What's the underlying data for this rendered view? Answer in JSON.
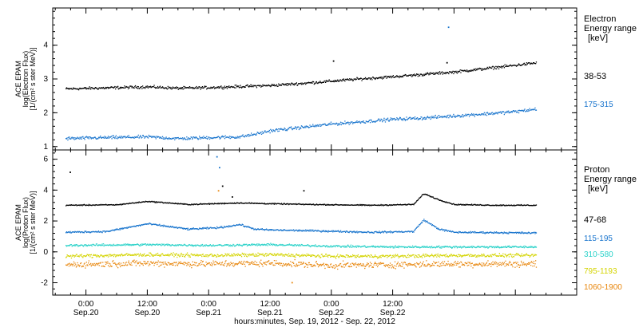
{
  "chart_data": [
    {
      "type": "scatter",
      "panel": "electron",
      "ylabel": [
        "ACE EPAM",
        "log(Electron Flux)",
        "[1/(cm² s ster MeV)]"
      ],
      "ylim": [
        0.9,
        5.1
      ],
      "yticks": [
        1,
        2,
        3,
        4
      ],
      "legend_title": [
        "Electron",
        "Energy range",
        "[keV]"
      ],
      "series": [
        {
          "name": "38-53",
          "color": "#000000",
          "x": [
            -4,
            4,
            12,
            18,
            24,
            30,
            36,
            42,
            48,
            54,
            60,
            66,
            72,
            78,
            84,
            88
          ],
          "y": [
            2.72,
            2.75,
            2.78,
            2.74,
            2.76,
            2.79,
            2.82,
            2.88,
            2.95,
            3.02,
            3.08,
            3.15,
            3.22,
            3.32,
            3.42,
            3.49
          ],
          "noise": 0.06
        },
        {
          "name": "175-315",
          "color": "#1874cd",
          "x": [
            -4,
            4,
            12,
            18,
            24,
            30,
            33,
            36,
            42,
            48,
            54,
            60,
            66,
            72,
            78,
            84,
            88
          ],
          "y": [
            1.25,
            1.28,
            1.3,
            1.25,
            1.28,
            1.3,
            1.38,
            1.48,
            1.58,
            1.68,
            1.75,
            1.82,
            1.86,
            1.92,
            1.98,
            2.05,
            2.12
          ],
          "noise": 0.07
        }
      ],
      "outliers": [
        {
          "x": 70.8,
          "y": 4.55,
          "color": "#1874cd"
        },
        {
          "x": 48.3,
          "y": 3.55,
          "color": "#000000"
        },
        {
          "x": 70.5,
          "y": 3.5,
          "color": "#000000"
        }
      ]
    },
    {
      "type": "scatter",
      "panel": "proton",
      "ylabel": [
        "ACE EPAM",
        "log(Proton Flux)",
        "[1/(cm² s ster MeV)]"
      ],
      "ylim": [
        -2.8,
        6.6
      ],
      "yticks": [
        -2,
        0,
        2,
        4,
        6
      ],
      "legend_title": [
        "Proton",
        "Energy range",
        "[keV]"
      ],
      "series": [
        {
          "name": "47-68",
          "color": "#000000",
          "x": [
            -4,
            6,
            12,
            20,
            30,
            36,
            44,
            56,
            64,
            66,
            69,
            72,
            80,
            88
          ],
          "y": [
            3.05,
            3.08,
            3.3,
            3.1,
            3.2,
            3.15,
            3.1,
            3.05,
            3.1,
            3.8,
            3.4,
            3.1,
            3.05,
            3.05
          ],
          "noise": 0.05
        },
        {
          "name": "115-195",
          "color": "#1874cd",
          "x": [
            -4,
            4,
            12,
            20,
            26,
            30,
            33,
            36,
            44,
            56,
            64,
            66,
            69,
            72,
            80,
            88
          ],
          "y": [
            1.3,
            1.35,
            1.85,
            1.5,
            1.6,
            1.8,
            1.5,
            1.45,
            1.4,
            1.3,
            1.35,
            2.1,
            1.5,
            1.3,
            1.28,
            1.25
          ],
          "noise": 0.08
        },
        {
          "name": "310-580",
          "color": "#2ad2c9",
          "x": [
            -4,
            12,
            24,
            36,
            48,
            60,
            72,
            88
          ],
          "y": [
            0.45,
            0.5,
            0.45,
            0.5,
            0.4,
            0.35,
            0.35,
            0.35
          ],
          "noise": 0.1
        },
        {
          "name": "795-1193",
          "color": "#d4d400",
          "x": [
            -4,
            12,
            24,
            36,
            48,
            60,
            72,
            88
          ],
          "y": [
            -0.25,
            -0.15,
            -0.2,
            -0.15,
            -0.25,
            -0.25,
            -0.2,
            -0.2
          ],
          "noise": 0.16
        },
        {
          "name": "1060-1900",
          "color": "#e8870e",
          "x": [
            -4,
            12,
            24,
            36,
            48,
            60,
            72,
            88
          ],
          "y": [
            -0.8,
            -0.7,
            -0.75,
            -0.7,
            -0.85,
            -0.8,
            -0.75,
            -0.75
          ],
          "noise": 0.3
        }
      ],
      "outliers": [
        {
          "x": -3.2,
          "y": 5.2,
          "color": "#000000"
        },
        {
          "x": 25.5,
          "y": 6.2,
          "color": "#1874cd"
        },
        {
          "x": 26.0,
          "y": 5.5,
          "color": "#1874cd"
        },
        {
          "x": 26.6,
          "y": 4.3,
          "color": "#000000"
        },
        {
          "x": 28.5,
          "y": 3.6,
          "color": "#000000"
        },
        {
          "x": 25.8,
          "y": 4.0,
          "color": "#e8870e"
        },
        {
          "x": 40.2,
          "y": -1.95,
          "color": "#e8870e"
        },
        {
          "x": 42.5,
          "y": 4.0,
          "color": "#000000"
        }
      ]
    }
  ],
  "x_axis": {
    "label": "hours:minutes, Sep. 19, 2012 - Sep. 22, 2012",
    "xlim": [
      -6.5,
      96
    ],
    "major_ticks": [
      {
        "x": 0,
        "time": "0:00",
        "date": "Sep.20"
      },
      {
        "x": 12,
        "time": "12:00",
        "date": "Sep.20"
      },
      {
        "x": 24,
        "time": "0:00",
        "date": "Sep.21"
      },
      {
        "x": 36,
        "time": "12:00",
        "date": "Sep.21"
      },
      {
        "x": 48,
        "time": "0:00",
        "date": "Sep.22"
      },
      {
        "x": 60,
        "time": "12:00",
        "date": "Sep.22"
      }
    ],
    "minor_step": 3
  }
}
